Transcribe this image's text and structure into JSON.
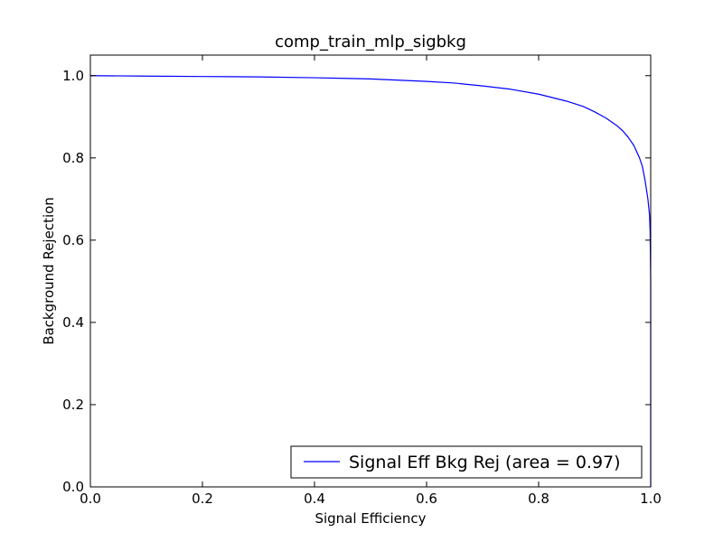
{
  "chart_data": {
    "type": "line",
    "title": "comp_train_mlp_sigbkg",
    "xlabel": "Signal Efficiency",
    "ylabel": "Background Rejection",
    "xlim": [
      0.0,
      1.0
    ],
    "ylim": [
      0.0,
      1.05
    ],
    "xticks": [
      0.0,
      0.2,
      0.4,
      0.6,
      0.8,
      1.0
    ],
    "xtick_labels": [
      "0.0",
      "0.2",
      "0.4",
      "0.6",
      "0.8",
      "1.0"
    ],
    "yticks": [
      0.0,
      0.2,
      0.4,
      0.6,
      0.8,
      1.0
    ],
    "ytick_labels": [
      "0.0",
      "0.2",
      "0.4",
      "0.6",
      "0.8",
      "1.0"
    ],
    "grid": false,
    "legend": {
      "placement": "lower-right",
      "entries": [
        {
          "label": "Signal Eff Bkg Rej (area = 0.97)",
          "color": "#0000ff"
        }
      ]
    },
    "series": [
      {
        "name": "Signal Eff Bkg Rej (area = 0.97)",
        "color": "#0000ff",
        "x": [
          0.0,
          0.1,
          0.2,
          0.3,
          0.4,
          0.5,
          0.6,
          0.65,
          0.7,
          0.75,
          0.8,
          0.85,
          0.88,
          0.9,
          0.92,
          0.94,
          0.95,
          0.96,
          0.97,
          0.98,
          0.985,
          0.99,
          0.995,
          0.998,
          0.999,
          1.0,
          1.0
        ],
        "y": [
          1.0,
          0.999,
          0.998,
          0.997,
          0.995,
          0.992,
          0.986,
          0.982,
          0.975,
          0.967,
          0.955,
          0.938,
          0.925,
          0.912,
          0.897,
          0.878,
          0.866,
          0.85,
          0.83,
          0.8,
          0.78,
          0.745,
          0.7,
          0.66,
          0.62,
          0.5,
          0.0
        ]
      }
    ]
  }
}
